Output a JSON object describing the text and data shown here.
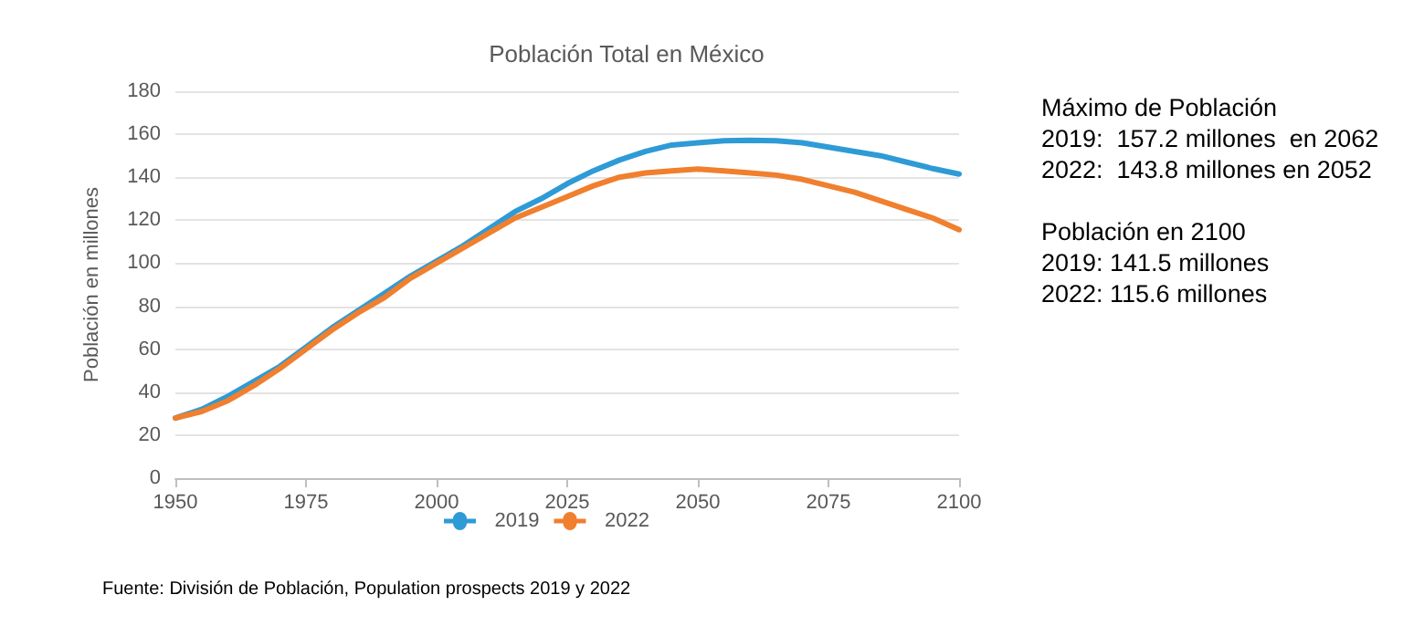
{
  "chart_data": {
    "type": "line",
    "title": "Población Total en México",
    "ylabel": "Población en millones",
    "x": [
      1950,
      1955,
      1960,
      1965,
      1970,
      1975,
      1980,
      1985,
      1990,
      1995,
      2000,
      2005,
      2010,
      2015,
      2020,
      2025,
      2030,
      2035,
      2040,
      2045,
      2050,
      2055,
      2060,
      2065,
      2070,
      2075,
      2080,
      2085,
      2090,
      2095,
      2100
    ],
    "series": [
      {
        "name": "2019",
        "color": "#2e9bd6",
        "values": [
          28,
          32,
          38,
          45,
          52,
          61,
          70,
          78,
          86,
          94,
          101,
          108,
          116,
          124,
          130,
          137,
          143,
          148,
          152,
          155,
          156,
          157,
          157.2,
          157,
          156,
          154,
          152,
          150,
          147,
          144,
          141.5
        ]
      },
      {
        "name": "2022",
        "color": "#f07f2e",
        "values": [
          28,
          31,
          36,
          43,
          51,
          60,
          69,
          77,
          84,
          93,
          100,
          107,
          114,
          121,
          126,
          131,
          136,
          140,
          142,
          143,
          143.8,
          143,
          142,
          141,
          139,
          136,
          133,
          129,
          125,
          121,
          115.6
        ]
      }
    ],
    "xlim": [
      1950,
      2100
    ],
    "xticks": [
      1950,
      1975,
      2000,
      2025,
      2050,
      2075,
      2100
    ],
    "ylim": [
      0,
      180
    ],
    "yticks": [
      0,
      20,
      40,
      60,
      80,
      100,
      120,
      140,
      160,
      180
    ],
    "grid": "y",
    "legend": "bottom",
    "marker": "none",
    "line_style": "solid",
    "annotations": [
      "Máximo de Población",
      "2019:  157.2 millones  en 2062",
      "2022:  143.8 millones en 2052",
      "Población en 2100",
      "2019: 141.5 millones",
      "2022: 115.6 millones",
      "Fuente: División de Población, Population prospects 2019 y 2022"
    ]
  }
}
